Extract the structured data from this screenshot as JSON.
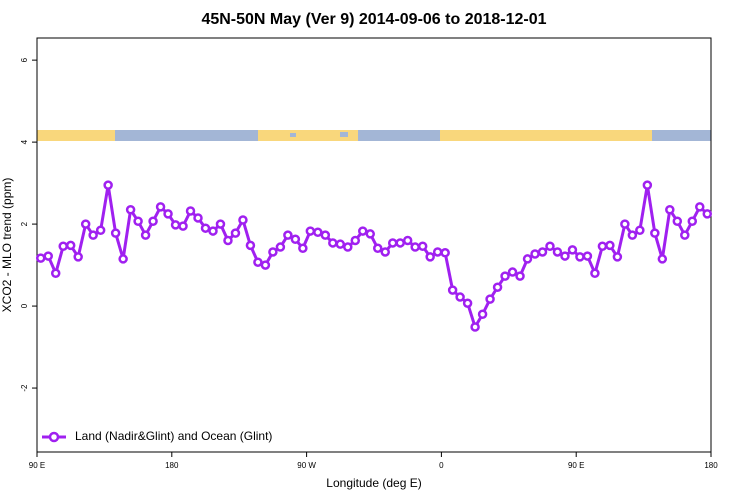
{
  "chart_data": {
    "type": "line",
    "title": "45N-50N May (Ver 9)   2014-09-06 to 2018-12-01",
    "xlabel": "Longitude (deg E)",
    "ylabel": "XCO2 - MLO trend (ppm)",
    "x": [
      92.5,
      97.5,
      102.5,
      107.5,
      112.5,
      117.5,
      122.5,
      127.5,
      132.5,
      137.5,
      142.5,
      147.5,
      152.5,
      157.5,
      162.5,
      167.5,
      172.5,
      177.5,
      182.5,
      187.5,
      192.5,
      197.5,
      202.5,
      207.5,
      212.5,
      217.5,
      222.5,
      227.5,
      232.5,
      237.5,
      242.5,
      247.5,
      252.5,
      257.5,
      262.5,
      267.5,
      272.5,
      277.5,
      282.5,
      287.5,
      292.5,
      297.5,
      302.5,
      307.5,
      312.5,
      317.5,
      322.5,
      327.5,
      332.5,
      337.5,
      342.5,
      347.5,
      352.5,
      357.5,
      362.5,
      367.5,
      372.5,
      377.5,
      382.5,
      387.5,
      392.5,
      397.5,
      402.5,
      407.5,
      412.5,
      417.5,
      422.5,
      427.5,
      432.5,
      437.5,
      442.5,
      447.5,
      452.5,
      457.5,
      462.5,
      467.5,
      472.5,
      477.5,
      482.5,
      487.5,
      492.5,
      497.5,
      502.5,
      507.5,
      512.5,
      517.5,
      522.5,
      527.5,
      532.5,
      537.5
    ],
    "series": [
      {
        "name": "Land (Nadir&Glint) and Ocean (Glint)",
        "color": "#a020f0",
        "values": [
          1.17,
          1.22,
          0.8,
          1.46,
          1.48,
          1.2,
          2.0,
          1.73,
          1.85,
          2.95,
          1.78,
          1.15,
          2.35,
          2.07,
          1.73,
          2.07,
          2.42,
          2.25,
          1.98,
          1.95,
          2.32,
          2.15,
          1.9,
          1.83,
          2.0,
          1.6,
          1.78,
          2.1,
          1.48,
          1.07,
          1.0,
          1.32,
          1.44,
          1.73,
          1.63,
          1.41,
          1.83,
          1.8,
          1.73,
          1.54,
          1.51,
          1.44,
          1.6,
          1.83,
          1.76,
          1.41,
          1.32,
          1.54,
          1.54,
          1.6,
          1.44,
          1.46,
          1.2,
          1.32,
          1.3,
          0.39,
          0.22,
          0.07,
          -0.51,
          -0.2,
          0.17,
          0.46,
          0.73,
          0.83,
          0.73,
          1.15,
          1.27,
          1.32,
          1.46,
          1.32,
          1.22,
          1.37,
          1.2,
          1.22,
          0.8,
          1.46,
          1.48,
          1.2,
          2.0,
          1.73,
          1.85,
          2.95,
          1.78,
          1.15,
          2.35,
          2.07,
          1.73,
          2.07,
          2.42,
          2.25
        ]
      }
    ],
    "xlim": [
      90,
      540
    ],
    "xticks": [
      {
        "value": 90,
        "label": "90 E"
      },
      180,
      {
        "value": 270,
        "label": "90 W"
      },
      {
        "value": 360,
        "label": "0"
      },
      {
        "value": 450,
        "label": "90 E"
      },
      {
        "value": 540,
        "label": "180"
      }
    ],
    "ylim": [
      -3.56,
      6.54
    ],
    "yticks": [
      -2,
      0,
      2,
      4,
      6
    ],
    "legend": "bottom-left"
  }
}
